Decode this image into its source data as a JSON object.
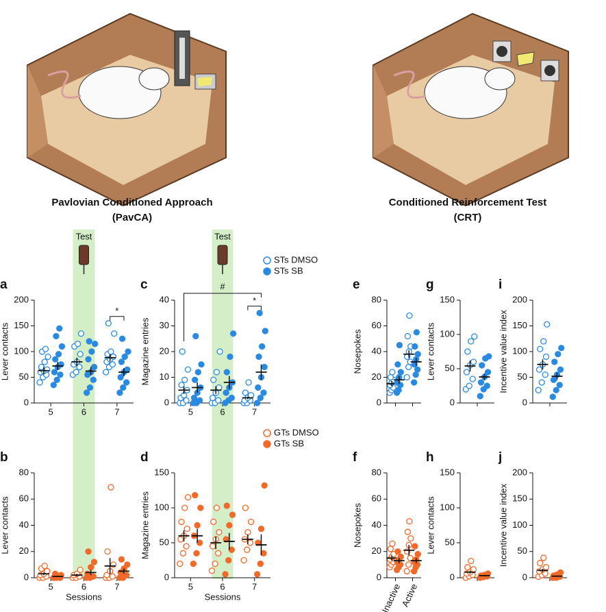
{
  "illustrations": [
    {
      "title": "Pavlovian Conditioned Approach",
      "subtitle": "(PavCA)"
    },
    {
      "title": "Conditioned Reinforcement Test",
      "subtitle": "(CRT)"
    }
  ],
  "chart_data": [
    {
      "type": "strip",
      "label": "a",
      "y_label": "Lever contacts",
      "categories": [
        "5",
        "6",
        "7"
      ],
      "ylim": [
        0,
        200
      ],
      "yticks": [
        0,
        50,
        100,
        150,
        200
      ],
      "highlight_category": "6",
      "highlight_label": "Test",
      "annotations": [
        {
          "text": "*",
          "category": "7"
        }
      ],
      "series": [
        {
          "name": "STs DMSO",
          "color": "#2a8ae2",
          "filled": false,
          "values": [
            63,
            80,
            88
          ],
          "errors": [
            7,
            8,
            7
          ],
          "points": [
            [
              40,
              50,
              55,
              60,
              62,
              65,
              70,
              80,
              90,
              100,
              105
            ],
            [
              55,
              60,
              70,
              75,
              80,
              95,
              110,
              115,
              135
            ],
            [
              60,
              70,
              75,
              80,
              85,
              90,
              95,
              100,
              135,
              155
            ]
          ]
        },
        {
          "name": "STs SB",
          "color": "#2a8ae2",
          "filled": true,
          "values": [
            72,
            62,
            60
          ],
          "errors": [
            8,
            8,
            8
          ],
          "points": [
            [
              35,
              45,
              55,
              60,
              70,
              75,
              85,
              95,
              110,
              130,
              145
            ],
            [
              20,
              30,
              45,
              55,
              60,
              70,
              85,
              100,
              115,
              120
            ],
            [
              20,
              30,
              40,
              50,
              60,
              65,
              80,
              90,
              100,
              125
            ]
          ]
        }
      ]
    },
    {
      "type": "strip",
      "label": "b",
      "y_label": "Lever contacts",
      "x_label": "Sessions",
      "categories": [
        "5",
        "6",
        "7"
      ],
      "ylim": [
        0,
        80
      ],
      "yticks": [
        0,
        20,
        40,
        60,
        80
      ],
      "highlight_category": "6",
      "series": [
        {
          "name": "GTs DMSO",
          "color": "#f26a2a",
          "filled": false,
          "values": [
            3,
            2,
            9
          ],
          "errors": [
            1,
            1,
            6
          ],
          "points": [
            [
              0,
              0,
              1,
              2,
              3,
              5,
              7,
              9
            ],
            [
              0,
              0,
              1,
              2,
              3,
              6
            ],
            [
              0,
              0,
              1,
              2,
              5,
              10,
              20,
              69
            ]
          ]
        },
        {
          "name": "GTs SB",
          "color": "#f26a2a",
          "filled": true,
          "values": [
            1,
            4,
            5
          ],
          "errors": [
            0.5,
            2,
            2
          ],
          "points": [
            [
              0,
              0,
              0,
              0,
              1,
              2,
              3
            ],
            [
              0,
              0,
              1,
              3,
              8,
              12,
              20
            ],
            [
              0,
              0,
              2,
              4,
              7,
              10,
              14
            ]
          ]
        }
      ]
    },
    {
      "type": "strip",
      "label": "c",
      "y_label": "Magazine entries",
      "categories": [
        "5",
        "6",
        "7"
      ],
      "ylim": [
        0,
        40
      ],
      "yticks": [
        0,
        10,
        20,
        30,
        40
      ],
      "highlight_category": "6",
      "highlight_label": "Test",
      "legend": true,
      "annotations": [
        {
          "text": "#",
          "from": "5",
          "to": "7"
        },
        {
          "text": "*",
          "category": "7"
        }
      ],
      "series": [
        {
          "name": "STs DMSO",
          "color": "#2a8ae2",
          "filled": false,
          "values": [
            5,
            5,
            2
          ],
          "errors": [
            1.5,
            1.5,
            0.5
          ],
          "points": [
            [
              0,
              0,
              1,
              2,
              3,
              5,
              7,
              9,
              13,
              20
            ],
            [
              0,
              0,
              1,
              2,
              4,
              6,
              9,
              12,
              20
            ],
            [
              0,
              0,
              1,
              1,
              2,
              3,
              4,
              8
            ]
          ]
        },
        {
          "name": "STs SB",
          "color": "#2a8ae2",
          "filled": true,
          "values": [
            6,
            8,
            12
          ],
          "errors": [
            2,
            2.5,
            3
          ],
          "points": [
            [
              0,
              0,
              1,
              2,
              4,
              6,
              9,
              12,
              15,
              26
            ],
            [
              0,
              1,
              2,
              4,
              6,
              8,
              12,
              18,
              27
            ],
            [
              0,
              2,
              4,
              6,
              10,
              14,
              18,
              22,
              28,
              35
            ]
          ]
        }
      ]
    },
    {
      "type": "strip",
      "label": "d",
      "y_label": "Magazine entries",
      "x_label": "Sessions",
      "categories": [
        "5",
        "6",
        "7"
      ],
      "ylim": [
        0,
        150
      ],
      "yticks": [
        0,
        50,
        100,
        150
      ],
      "highlight_category": "6",
      "legend": true,
      "series": [
        {
          "name": "GTs DMSO",
          "color": "#f26a2a",
          "filled": false,
          "values": [
            60,
            50,
            55
          ],
          "errors": [
            8,
            9,
            7
          ],
          "points": [
            [
              20,
              35,
              45,
              55,
              60,
              70,
              80,
              100,
              115
            ],
            [
              10,
              20,
              35,
              45,
              55,
              65,
              80,
              100
            ],
            [
              25,
              40,
              50,
              55,
              65,
              80,
              100
            ]
          ]
        },
        {
          "name": "GTs SB",
          "color": "#f26a2a",
          "filled": true,
          "values": [
            60,
            52,
            47
          ],
          "errors": [
            10,
            12,
            15
          ],
          "points": [
            [
              20,
              35,
              50,
              60,
              75,
              100,
              118
            ],
            [
              5,
              25,
              40,
              55,
              75,
              90,
              103
            ],
            [
              5,
              20,
              35,
              50,
              70,
              132
            ]
          ]
        }
      ]
    },
    {
      "type": "strip",
      "label": "e",
      "y_label": "Nosepokes",
      "categories": [
        null,
        null
      ],
      "ylim": [
        0,
        80
      ],
      "yticks": [
        0,
        20,
        40,
        60,
        80
      ],
      "series": [
        {
          "name": "STs DMSO",
          "color": "#2a8ae2",
          "filled": false,
          "values": [
            15,
            38
          ],
          "errors": [
            2,
            3
          ],
          "points": [
            [
              8,
              10,
              12,
              14,
              16,
              18,
              20,
              24
            ],
            [
              20,
              28,
              32,
              36,
              40,
              44,
              52,
              68
            ]
          ]
        },
        {
          "name": "STs SB",
          "color": "#2a8ae2",
          "filled": true,
          "values": [
            18,
            32
          ],
          "errors": [
            3,
            3
          ],
          "points": [
            [
              8,
              10,
              14,
              16,
              20,
              24,
              30,
              45
            ],
            [
              16,
              22,
              26,
              30,
              34,
              38,
              44,
              55
            ]
          ]
        }
      ]
    },
    {
      "type": "strip",
      "label": "f",
      "y_label": "Nosepokes",
      "categories": [
        "Inactive",
        "Active"
      ],
      "ylim": [
        0,
        80
      ],
      "yticks": [
        0,
        20,
        40,
        60,
        80
      ],
      "series": [
        {
          "name": "GTs DMSO",
          "color": "#f26a2a",
          "filled": false,
          "values": [
            15,
            21
          ],
          "errors": [
            2,
            4
          ],
          "points": [
            [
              8,
              10,
              12,
              14,
              16,
              18,
              22,
              26
            ],
            [
              5,
              10,
              15,
              20,
              25,
              30,
              35,
              43
            ]
          ]
        },
        {
          "name": "GTs SB",
          "color": "#f26a2a",
          "filled": true,
          "values": [
            13,
            13
          ],
          "errors": [
            2,
            2
          ],
          "points": [
            [
              6,
              8,
              10,
              12,
              14,
              16,
              20
            ],
            [
              5,
              8,
              10,
              12,
              14,
              18,
              24
            ]
          ]
        }
      ]
    },
    {
      "type": "strip",
      "label": "g",
      "y_label": "Lever contacts",
      "categories": [
        null
      ],
      "ylim": [
        0,
        150
      ],
      "yticks": [
        0,
        50,
        100,
        150
      ],
      "series": [
        {
          "name": "STs DMSO",
          "color": "#2a8ae2",
          "filled": false,
          "values": [
            54
          ],
          "errors": [
            8
          ],
          "points": [
            [
              20,
              25,
              35,
              45,
              55,
              60,
              75,
              90,
              97
            ]
          ]
        },
        {
          "name": "STs SB",
          "color": "#2a8ae2",
          "filled": true,
          "values": [
            38
          ],
          "errors": [
            5
          ],
          "points": [
            [
              10,
              20,
              25,
              30,
              38,
              45,
              55,
              65,
              68
            ]
          ]
        }
      ]
    },
    {
      "type": "strip",
      "label": "h",
      "y_label": "Lever contacts",
      "categories": [
        null
      ],
      "ylim": [
        0,
        150
      ],
      "yticks": [
        0,
        50,
        100,
        150
      ],
      "series": [
        {
          "name": "GTs DMSO",
          "color": "#f26a2a",
          "filled": false,
          "values": [
            8
          ],
          "errors": [
            2
          ],
          "points": [
            [
              0,
              2,
              4,
              6,
              8,
              12,
              15,
              24
            ]
          ]
        },
        {
          "name": "GTs SB",
          "color": "#f26a2a",
          "filled": true,
          "values": [
            3
          ],
          "errors": [
            1
          ],
          "points": [
            [
              0,
              1,
              2,
              3,
              4,
              6
            ]
          ]
        }
      ]
    },
    {
      "type": "strip",
      "label": "i",
      "y_label": "Incentive value index",
      "categories": [
        null
      ],
      "ylim": [
        0,
        200
      ],
      "yticks": [
        0,
        50,
        100,
        150,
        200
      ],
      "series": [
        {
          "name": "STs DMSO",
          "color": "#2a8ae2",
          "filled": false,
          "values": [
            75
          ],
          "errors": [
            10
          ],
          "points": [
            [
              25,
              40,
              55,
              65,
              75,
              90,
              105,
              120,
              153
            ]
          ]
        },
        {
          "name": "STs SB",
          "color": "#2a8ae2",
          "filled": true,
          "values": [
            52
          ],
          "errors": [
            7
          ],
          "points": [
            [
              12,
              25,
              35,
              45,
              55,
              65,
              80,
              95,
              107
            ]
          ]
        }
      ]
    },
    {
      "type": "strip",
      "label": "j",
      "y_label": "Incentive value index",
      "categories": [
        null
      ],
      "ylim": [
        0,
        200
      ],
      "yticks": [
        0,
        50,
        100,
        150,
        200
      ],
      "series": [
        {
          "name": "GTs DMSO",
          "color": "#f26a2a",
          "filled": false,
          "values": [
            14
          ],
          "errors": [
            3
          ],
          "points": [
            [
              2,
              5,
              8,
              12,
              16,
              20,
              28,
              38
            ]
          ]
        },
        {
          "name": "GTs SB",
          "color": "#f26a2a",
          "filled": true,
          "values": [
            3
          ],
          "errors": [
            1
          ],
          "points": [
            [
              0,
              0,
              2,
              4,
              6,
              10
            ]
          ]
        }
      ]
    }
  ]
}
